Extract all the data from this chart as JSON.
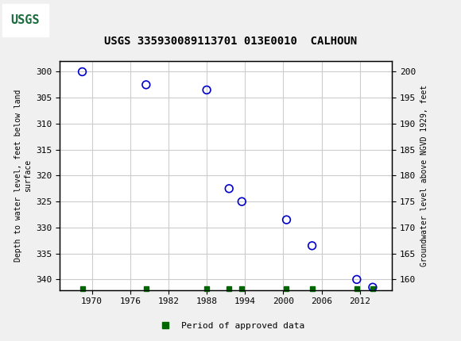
{
  "title": "USGS 335930089113701 013E0010  CALHOUN",
  "ylabel_left": "Depth to water level, feet below land\nsurface",
  "ylabel_right": "Groundwater level above NGVD 1929, feet",
  "header_color": "#1a6b3c",
  "background_color": "#f0f0f0",
  "plot_background": "#ffffff",
  "scatter_x": [
    1968.5,
    1978.5,
    1988.0,
    1991.5,
    1993.5,
    2000.5,
    2004.5,
    2011.5,
    2014.0
  ],
  "scatter_y_left": [
    300.0,
    302.5,
    303.5,
    322.5,
    325.0,
    328.5,
    333.5,
    340.0,
    341.5
  ],
  "xlim": [
    1965,
    2017
  ],
  "ylim_left": [
    342,
    298
  ],
  "ylim_right": [
    158,
    202
  ],
  "xticks": [
    1970,
    1976,
    1982,
    1988,
    1994,
    2000,
    2006,
    2012
  ],
  "yticks_left": [
    300,
    305,
    310,
    315,
    320,
    325,
    330,
    335,
    340
  ],
  "yticks_right": [
    200,
    195,
    190,
    185,
    180,
    175,
    170,
    165,
    160
  ],
  "grid_color": "#cccccc",
  "marker_color": "#0000cc",
  "marker_size": 7,
  "approved_data_x": [
    1968.5,
    1978.5,
    1988.0,
    1991.5,
    1993.5,
    2000.5,
    2004.5,
    2011.5,
    2014.0
  ],
  "approved_bar_color": "#006600",
  "legend_label": "Period of approved data"
}
